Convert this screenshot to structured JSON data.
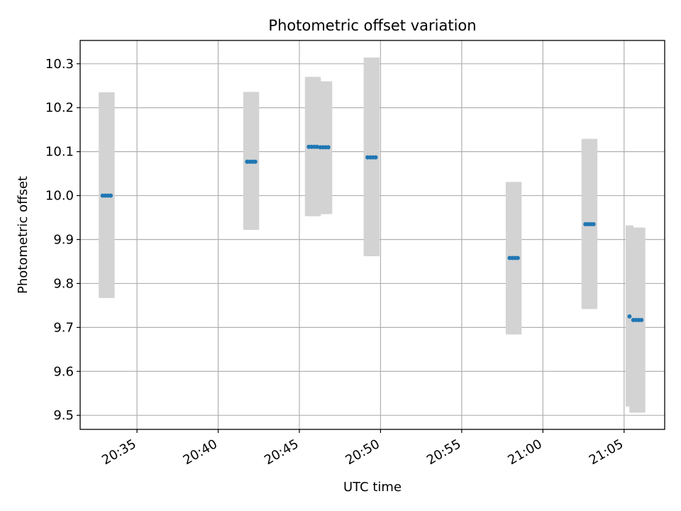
{
  "chart_data": {
    "type": "scatter",
    "title": "Photometric offset variation",
    "xlabel": "UTC time",
    "ylabel": "Photometric offset",
    "xlim": [
      "20:31:30",
      "21:07:30"
    ],
    "ylim": [
      9.468,
      10.353
    ],
    "grid": true,
    "x_ticks": [
      "20:35",
      "20:40",
      "20:45",
      "20:50",
      "20:55",
      "21:00",
      "21:05"
    ],
    "y_ticks": [
      "9.5",
      "9.6",
      "9.7",
      "9.8",
      "9.9",
      "10.0",
      "10.1",
      "10.2",
      "10.3"
    ],
    "marker_color": "#1f77b4",
    "error_bar_color": "#d3d3d3",
    "series": [
      {
        "points": [
          {
            "x": "20:32:53",
            "y": 10.0,
            "low": 9.767,
            "high": 10.235
          },
          {
            "x": "20:33:03",
            "y": 10.0,
            "low": 9.767,
            "high": 10.235
          },
          {
            "x": "20:33:13",
            "y": 10.0,
            "low": 9.767,
            "high": 10.235
          },
          {
            "x": "20:33:23",
            "y": 10.0,
            "low": 9.767,
            "high": 10.235
          },
          {
            "x": "20:41:47",
            "y": 10.077,
            "low": 9.922,
            "high": 10.236
          },
          {
            "x": "20:41:57",
            "y": 10.077,
            "low": 9.922,
            "high": 10.236
          },
          {
            "x": "20:42:07",
            "y": 10.077,
            "low": 9.922,
            "high": 10.236
          },
          {
            "x": "20:42:17",
            "y": 10.077,
            "low": 9.922,
            "high": 10.236
          },
          {
            "x": "20:45:35",
            "y": 10.111,
            "low": 9.953,
            "high": 10.27
          },
          {
            "x": "20:45:45",
            "y": 10.111,
            "low": 9.953,
            "high": 10.27
          },
          {
            "x": "20:45:55",
            "y": 10.111,
            "low": 9.953,
            "high": 10.27
          },
          {
            "x": "20:46:05",
            "y": 10.111,
            "low": 9.953,
            "high": 10.27
          },
          {
            "x": "20:46:17",
            "y": 10.11,
            "low": 9.958,
            "high": 10.26
          },
          {
            "x": "20:46:27",
            "y": 10.11,
            "low": 9.958,
            "high": 10.26
          },
          {
            "x": "20:46:37",
            "y": 10.11,
            "low": 9.958,
            "high": 10.26
          },
          {
            "x": "20:46:47",
            "y": 10.11,
            "low": 9.958,
            "high": 10.26
          },
          {
            "x": "20:49:12",
            "y": 10.087,
            "low": 9.862,
            "high": 10.314
          },
          {
            "x": "20:49:22",
            "y": 10.087,
            "low": 9.862,
            "high": 10.314
          },
          {
            "x": "20:49:32",
            "y": 10.087,
            "low": 9.862,
            "high": 10.314
          },
          {
            "x": "20:49:42",
            "y": 10.087,
            "low": 9.862,
            "high": 10.314
          },
          {
            "x": "20:57:57",
            "y": 9.858,
            "low": 9.684,
            "high": 10.031
          },
          {
            "x": "20:58:07",
            "y": 9.858,
            "low": 9.684,
            "high": 10.031
          },
          {
            "x": "20:58:17",
            "y": 9.858,
            "low": 9.684,
            "high": 10.031
          },
          {
            "x": "20:58:27",
            "y": 9.858,
            "low": 9.684,
            "high": 10.031
          },
          {
            "x": "21:02:37",
            "y": 9.935,
            "low": 9.742,
            "high": 10.129
          },
          {
            "x": "21:02:47",
            "y": 9.935,
            "low": 9.742,
            "high": 10.129
          },
          {
            "x": "21:02:57",
            "y": 9.935,
            "low": 9.742,
            "high": 10.129
          },
          {
            "x": "21:03:07",
            "y": 9.935,
            "low": 9.742,
            "high": 10.129
          },
          {
            "x": "21:05:20",
            "y": 9.725,
            "low": 9.52,
            "high": 9.932
          },
          {
            "x": "21:05:34",
            "y": 9.717,
            "low": 9.506,
            "high": 9.927
          },
          {
            "x": "21:05:44",
            "y": 9.717,
            "low": 9.506,
            "high": 9.927
          },
          {
            "x": "21:05:54",
            "y": 9.717,
            "low": 9.506,
            "high": 9.927
          },
          {
            "x": "21:06:04",
            "y": 9.717,
            "low": 9.506,
            "high": 9.927
          }
        ]
      }
    ]
  }
}
